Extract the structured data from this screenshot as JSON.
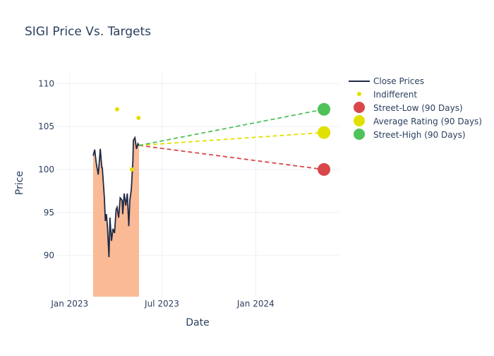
{
  "chart_data": {
    "type": "line",
    "title": "SIGI Price Vs. Targets",
    "xlabel": "Date",
    "ylabel": "Price",
    "xlim": [
      "2022-12-06",
      "2024-06-12"
    ],
    "ylim": [
      85.2,
      111.5
    ],
    "x_ticks": [
      {
        "date": "2023-01-01",
        "label": "Jan 2023"
      },
      {
        "date": "2023-07-01",
        "label": "Jul 2023"
      },
      {
        "date": "2024-01-01",
        "label": "Jan 2024"
      }
    ],
    "y_ticks": [
      90,
      95,
      100,
      105,
      110
    ],
    "grid": true,
    "legend_position": "top-right",
    "colors": {
      "line": "#1f2a44",
      "fill": "#f9a97a",
      "indifferent": "#e2e000",
      "low": "#d9474b",
      "avg": "#e2e000",
      "high": "#4fc25a",
      "grid": "#ebf0f8"
    },
    "close_prices": {
      "name": "Close Prices",
      "x": [
        "2023-02-16",
        "2023-02-19",
        "2023-02-22",
        "2023-02-26",
        "2023-02-27",
        "2023-03-02",
        "2023-03-05",
        "2023-03-06",
        "2023-03-10",
        "2023-03-12",
        "2023-03-14",
        "2023-03-16",
        "2023-03-19",
        "2023-03-21",
        "2023-03-24",
        "2023-03-27",
        "2023-03-30",
        "2023-04-02",
        "2023-04-04",
        "2023-04-07",
        "2023-04-10",
        "2023-04-14",
        "2023-04-15",
        "2023-04-18",
        "2023-04-21",
        "2023-04-24",
        "2023-04-27",
        "2023-04-29",
        "2023-05-02",
        "2023-05-05",
        "2023-05-06",
        "2023-05-09",
        "2023-05-12",
        "2023-05-15",
        "2023-05-17"
      ],
      "y": [
        101.6,
        102.3,
        100.8,
        99.4,
        100.0,
        102.4,
        100.2,
        100.2,
        96.7,
        94.0,
        94.8,
        93.4,
        89.8,
        94.4,
        91.7,
        93.1,
        92.6,
        95.3,
        95.6,
        94.4,
        96.7,
        96.4,
        94.8,
        97.2,
        95.8,
        97.2,
        93.4,
        96.4,
        97.7,
        101.0,
        103.4,
        103.7,
        102.4,
        103.0,
        102.8
      ]
    },
    "indifferent": {
      "name": "Indifferent",
      "x": [
        "2023-04-04",
        "2023-05-03",
        "2023-05-16"
      ],
      "y": [
        107,
        100,
        106
      ]
    },
    "targets": [
      {
        "key": "low",
        "name": "Street-Low (90 Days)",
        "x": "2024-05-14",
        "y": 100
      },
      {
        "key": "avg",
        "name": "Average Rating (90 Days)",
        "x": "2024-05-14",
        "y": 104.3
      },
      {
        "key": "high",
        "name": "Street-High (90 Days)",
        "x": "2024-05-14",
        "y": 107
      }
    ]
  }
}
